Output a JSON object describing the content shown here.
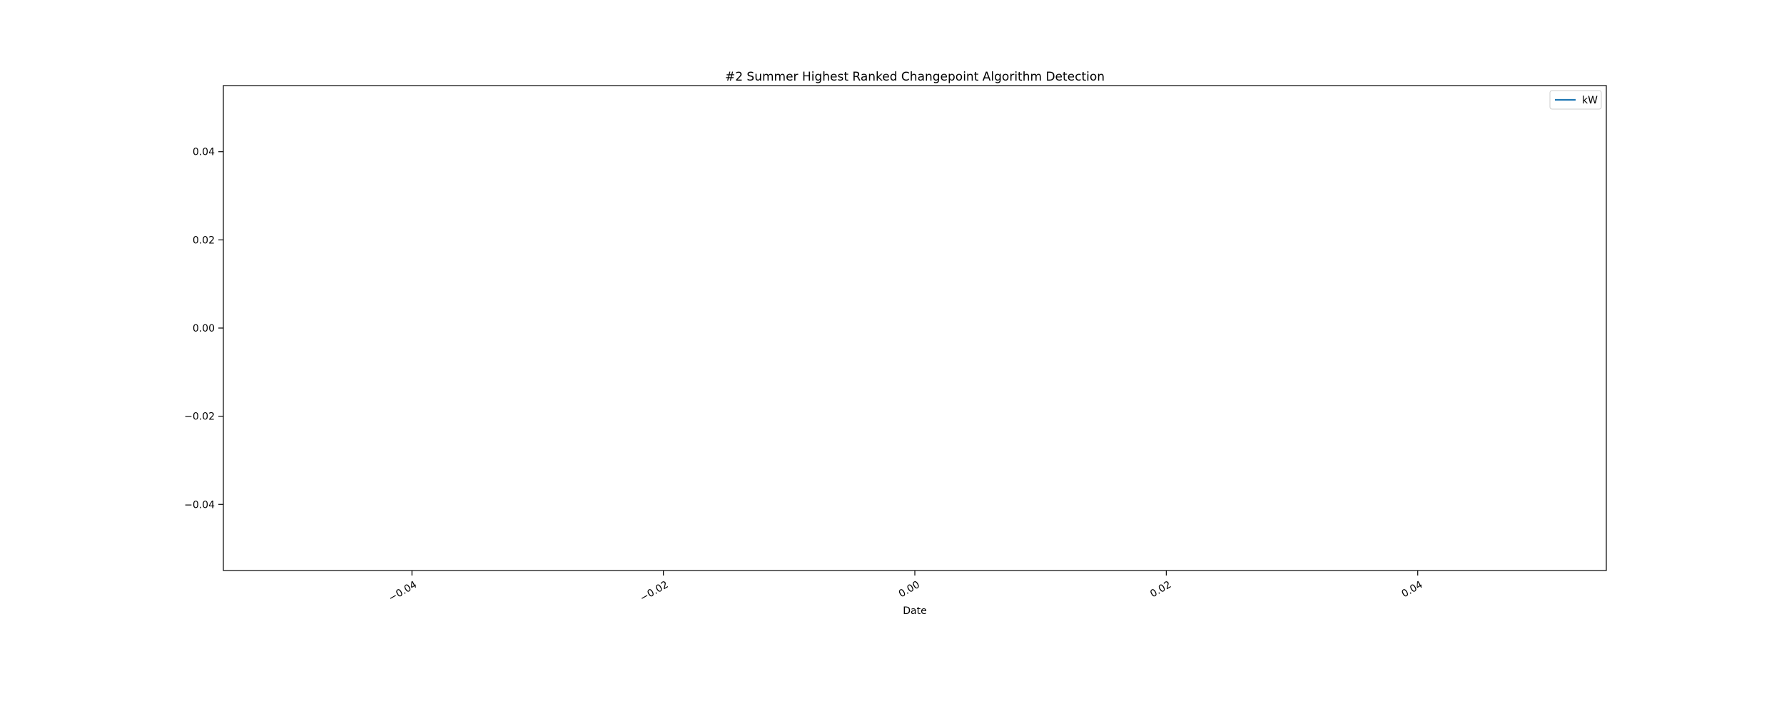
{
  "chart_data": {
    "type": "line",
    "title": "#2 Summer Highest Ranked Changepoint Algorithm Detection",
    "xlabel": "Date",
    "ylabel": "",
    "xlim": [
      -0.055,
      0.055
    ],
    "ylim": [
      -0.055,
      0.055
    ],
    "x_ticks": [
      -0.04,
      -0.02,
      0.0,
      0.02,
      0.04
    ],
    "x_tick_labels": [
      "−0.04",
      "−0.02",
      "0.00",
      "0.02",
      "0.04"
    ],
    "y_ticks": [
      -0.04,
      -0.02,
      0.0,
      0.02,
      0.04
    ],
    "y_tick_labels": [
      "−0.04",
      "−0.02",
      "0.00",
      "0.02",
      "0.04"
    ],
    "grid": false,
    "legend_position": "top-right",
    "series": [
      {
        "name": "kW",
        "color": "#1f77b4",
        "x": [],
        "y": []
      }
    ]
  }
}
